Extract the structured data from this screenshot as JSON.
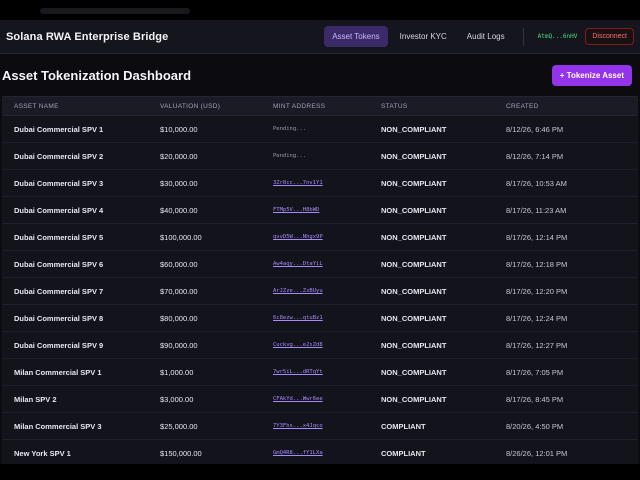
{
  "navbar": {
    "brand": "Solana RWA Enterprise Bridge",
    "tabs": [
      {
        "label": "Asset Tokens",
        "active": true
      },
      {
        "label": "Investor KYC",
        "active": false
      },
      {
        "label": "Audit Logs",
        "active": false
      }
    ],
    "wallet": "AtmQ...6nHV",
    "disconnect": "Disconnect"
  },
  "header": {
    "title": "Asset Tokenization Dashboard",
    "tokenize_label": "+ Tokenize Asset"
  },
  "table": {
    "columns": [
      "ASSET NAME",
      "VALUATION (USD)",
      "MINT ADDRESS",
      "STATUS",
      "CREATED"
    ],
    "rows": [
      {
        "name": "Dubai Commercial SPV 1",
        "valuation": "$10,000.00",
        "mint": "Pending...",
        "pending": true,
        "status": "NON_COMPLIANT",
        "created": "8/12/26, 6:46 PM"
      },
      {
        "name": "Dubai Commercial SPV 2",
        "valuation": "$20,000.00",
        "mint": "Pending...",
        "pending": true,
        "status": "NON_COMPLIANT",
        "created": "8/12/26, 7:14 PM"
      },
      {
        "name": "Dubai Commercial SPV 3",
        "valuation": "$30,000.00",
        "mint": "3Zr8cc...7nv1Y1",
        "pending": false,
        "status": "NON_COMPLIANT",
        "created": "8/17/26, 10:53 AM"
      },
      {
        "name": "Dubai Commercial SPV 4",
        "valuation": "$40,000.00",
        "mint": "FTMp5V...H8bWD",
        "pending": false,
        "status": "NON_COMPLIANT",
        "created": "8/17/26, 11:23 AM"
      },
      {
        "name": "Dubai Commercial SPV 5",
        "valuation": "$100,000.00",
        "mint": "qvvD5W...Nhgx9P",
        "pending": false,
        "status": "NON_COMPLIANT",
        "created": "8/17/26, 12:14 PM"
      },
      {
        "name": "Dubai Commercial SPV 6",
        "valuation": "$60,000.00",
        "mint": "Aw4aqy...DtaYiL",
        "pending": false,
        "status": "NON_COMPLIANT",
        "created": "8/17/26, 12:18 PM"
      },
      {
        "name": "Dubai Commercial SPV 7",
        "valuation": "$70,000.00",
        "mint": "ArJZze...ZsBUyu",
        "pending": false,
        "status": "NON_COMPLIANT",
        "created": "8/17/26, 12:20 PM"
      },
      {
        "name": "Dubai Commercial SPV 8",
        "valuation": "$80,000.00",
        "mint": "6c8ezw...qtuBz1",
        "pending": false,
        "status": "NON_COMPLIANT",
        "created": "8/17/26, 12:24 PM"
      },
      {
        "name": "Dubai Commercial SPV 9",
        "valuation": "$90,000.00",
        "mint": "Cuckvg...e2sZd8",
        "pending": false,
        "status": "NON_COMPLIANT",
        "created": "8/17/26, 12:27 PM"
      },
      {
        "name": "Milan Commercial SPV 1",
        "valuation": "$1,000.00",
        "mint": "7wr5iL...dRTqYt",
        "pending": false,
        "status": "NON_COMPLIANT",
        "created": "8/17/26, 7:05 PM"
      },
      {
        "name": "Milan SPV 2",
        "valuation": "$3,000.00",
        "mint": "CFAkYd...Wwr6ee",
        "pending": false,
        "status": "NON_COMPLIANT",
        "created": "8/17/26, 8:45 PM"
      },
      {
        "name": "Milan Commercial SPV 3",
        "valuation": "$25,000.00",
        "mint": "7Y3Fhs...x4Jqco",
        "pending": false,
        "status": "COMPLIANT",
        "created": "8/20/26, 4:50 PM"
      },
      {
        "name": "New York SPV 1",
        "valuation": "$150,000.00",
        "mint": "GmQ4R8...fY1LXa",
        "pending": false,
        "status": "COMPLIANT",
        "created": "8/26/26, 12:01 PM"
      }
    ]
  },
  "colors": {
    "accent": "#9333ea",
    "active_tab_bg": "#3b2a68",
    "mint_link": "#a78bfa",
    "wallet_text": "#4ade80",
    "disconnect": "#f87171"
  }
}
